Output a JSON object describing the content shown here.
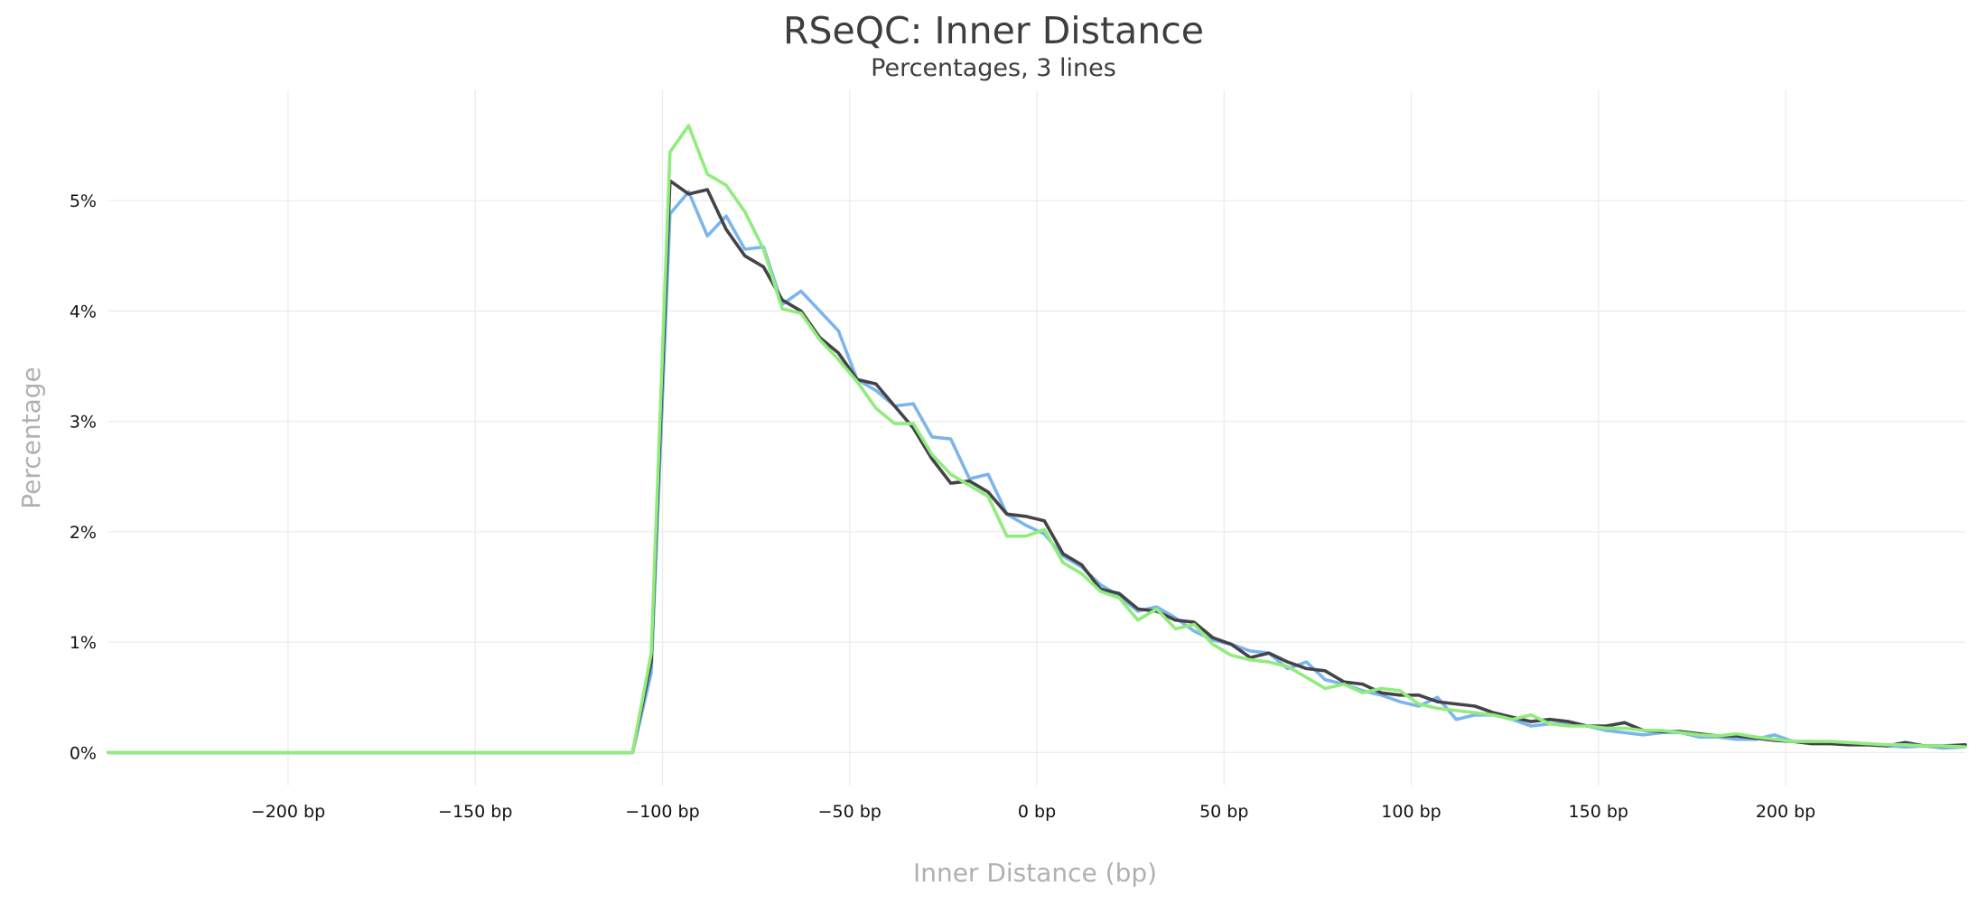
{
  "chart_data": {
    "type": "line",
    "title": "RSeQC: Inner Distance",
    "subtitle": "Percentages, 3 lines",
    "xlabel": "Inner Distance (bp)",
    "ylabel": "Percentage",
    "xlim": [
      -248,
      248
    ],
    "ylim": [
      -0.3,
      6.0
    ],
    "xticks": [
      {
        "value": -200,
        "label": "−200 bp"
      },
      {
        "value": -150,
        "label": "−150 bp"
      },
      {
        "value": -100,
        "label": "−100 bp"
      },
      {
        "value": -50,
        "label": "−50 bp"
      },
      {
        "value": 0,
        "label": "0 bp"
      },
      {
        "value": 50,
        "label": "50 bp"
      },
      {
        "value": 100,
        "label": "100 bp"
      },
      {
        "value": 150,
        "label": "150 bp"
      },
      {
        "value": 200,
        "label": "200 bp"
      }
    ],
    "yticks": [
      {
        "value": 0,
        "label": "0%"
      },
      {
        "value": 1,
        "label": "1%"
      },
      {
        "value": 2,
        "label": "2%"
      },
      {
        "value": 3,
        "label": "3%"
      },
      {
        "value": 4,
        "label": "4%"
      },
      {
        "value": 5,
        "label": "5%"
      }
    ],
    "grid": true,
    "series": [
      {
        "color": "#7cb5ec",
        "x": [
          -248,
          -108,
          -103,
          -98,
          -93,
          -88,
          -83,
          -78,
          -73,
          -68,
          -63,
          -58,
          -53,
          -48,
          -43,
          -38,
          -33,
          -28,
          -23,
          -18,
          -13,
          -8,
          -3,
          2,
          7,
          12,
          17,
          22,
          27,
          32,
          37,
          42,
          47,
          52,
          57,
          62,
          67,
          72,
          77,
          82,
          87,
          92,
          97,
          102,
          107,
          112,
          117,
          122,
          127,
          132,
          137,
          142,
          147,
          152,
          157,
          162,
          167,
          172,
          177,
          182,
          187,
          192,
          197,
          202,
          207,
          212,
          217,
          222,
          227,
          232,
          237,
          242,
          248
        ],
        "y": [
          0,
          0,
          0.72,
          4.88,
          5.08,
          4.68,
          4.86,
          4.56,
          4.58,
          4.06,
          4.18,
          4.0,
          3.82,
          3.38,
          3.28,
          3.14,
          3.16,
          2.86,
          2.84,
          2.48,
          2.52,
          2.16,
          2.06,
          1.98,
          1.78,
          1.68,
          1.52,
          1.42,
          1.28,
          1.32,
          1.22,
          1.1,
          1.02,
          0.98,
          0.92,
          0.9,
          0.76,
          0.82,
          0.66,
          0.62,
          0.56,
          0.52,
          0.46,
          0.42,
          0.5,
          0.3,
          0.34,
          0.34,
          0.3,
          0.24,
          0.26,
          0.26,
          0.24,
          0.2,
          0.18,
          0.16,
          0.18,
          0.18,
          0.14,
          0.14,
          0.12,
          0.12,
          0.16,
          0.1,
          0.1,
          0.08,
          0.08,
          0.07,
          0.06,
          0.05,
          0.06,
          0.04,
          0.05
        ]
      },
      {
        "color": "#434348",
        "x": [
          -248,
          -108,
          -103,
          -98,
          -93,
          -88,
          -83,
          -78,
          -73,
          -68,
          -63,
          -58,
          -53,
          -48,
          -43,
          -38,
          -33,
          -28,
          -23,
          -18,
          -13,
          -8,
          -3,
          2,
          7,
          12,
          17,
          22,
          27,
          32,
          37,
          42,
          47,
          52,
          57,
          62,
          67,
          72,
          77,
          82,
          87,
          92,
          97,
          102,
          107,
          112,
          117,
          122,
          127,
          132,
          137,
          142,
          147,
          152,
          157,
          162,
          167,
          172,
          177,
          182,
          187,
          192,
          197,
          202,
          207,
          212,
          217,
          222,
          227,
          232,
          237,
          242,
          248
        ],
        "y": [
          0,
          0,
          0.82,
          5.18,
          5.06,
          5.1,
          4.74,
          4.5,
          4.4,
          4.1,
          4.0,
          3.76,
          3.62,
          3.38,
          3.34,
          3.14,
          2.94,
          2.66,
          2.44,
          2.46,
          2.36,
          2.16,
          2.14,
          2.1,
          1.8,
          1.7,
          1.48,
          1.44,
          1.3,
          1.28,
          1.2,
          1.18,
          1.04,
          0.98,
          0.86,
          0.9,
          0.82,
          0.76,
          0.74,
          0.64,
          0.62,
          0.54,
          0.52,
          0.52,
          0.46,
          0.44,
          0.42,
          0.36,
          0.32,
          0.28,
          0.3,
          0.28,
          0.24,
          0.24,
          0.27,
          0.2,
          0.19,
          0.19,
          0.17,
          0.15,
          0.15,
          0.13,
          0.11,
          0.1,
          0.08,
          0.08,
          0.07,
          0.07,
          0.06,
          0.09,
          0.06,
          0.06,
          0.07
        ]
      },
      {
        "color": "#90ed7d",
        "x": [
          -248,
          -108,
          -103,
          -98,
          -93,
          -88,
          -83,
          -78,
          -73,
          -68,
          -63,
          -58,
          -53,
          -48,
          -43,
          -38,
          -33,
          -28,
          -23,
          -18,
          -13,
          -8,
          -3,
          2,
          7,
          12,
          17,
          22,
          27,
          32,
          37,
          42,
          47,
          52,
          57,
          62,
          67,
          72,
          77,
          82,
          87,
          92,
          97,
          102,
          107,
          112,
          117,
          122,
          127,
          132,
          137,
          142,
          147,
          152,
          157,
          162,
          167,
          172,
          177,
          182,
          187,
          192,
          197,
          202,
          207,
          212,
          217,
          222,
          227,
          232,
          237,
          242,
          248
        ],
        "y": [
          0,
          0,
          0.9,
          5.44,
          5.68,
          5.24,
          5.14,
          4.9,
          4.56,
          4.02,
          3.98,
          3.74,
          3.56,
          3.36,
          3.12,
          2.98,
          2.98,
          2.7,
          2.52,
          2.42,
          2.32,
          1.96,
          1.96,
          2.02,
          1.72,
          1.62,
          1.46,
          1.4,
          1.2,
          1.3,
          1.12,
          1.16,
          0.98,
          0.88,
          0.84,
          0.82,
          0.78,
          0.68,
          0.58,
          0.62,
          0.54,
          0.58,
          0.56,
          0.44,
          0.4,
          0.38,
          0.36,
          0.34,
          0.3,
          0.34,
          0.26,
          0.24,
          0.24,
          0.22,
          0.22,
          0.2,
          0.2,
          0.18,
          0.16,
          0.15,
          0.17,
          0.14,
          0.12,
          0.1,
          0.1,
          0.1,
          0.09,
          0.08,
          0.07,
          0.07,
          0.06,
          0.06,
          0.05
        ]
      }
    ]
  }
}
